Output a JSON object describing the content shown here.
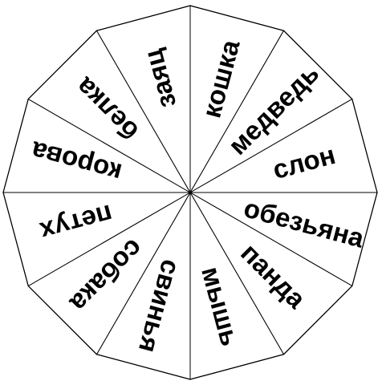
{
  "wheel": {
    "sectors": [
      {
        "word": "кошка"
      },
      {
        "word": "медведь"
      },
      {
        "word": "слон"
      },
      {
        "word": "обезьяна"
      },
      {
        "word": "панда"
      },
      {
        "word": "мышь"
      },
      {
        "word": "свинья"
      },
      {
        "word": "собака"
      },
      {
        "word": "петух"
      },
      {
        "word": "корова"
      },
      {
        "word": "белка"
      },
      {
        "word": "заяц"
      }
    ]
  }
}
